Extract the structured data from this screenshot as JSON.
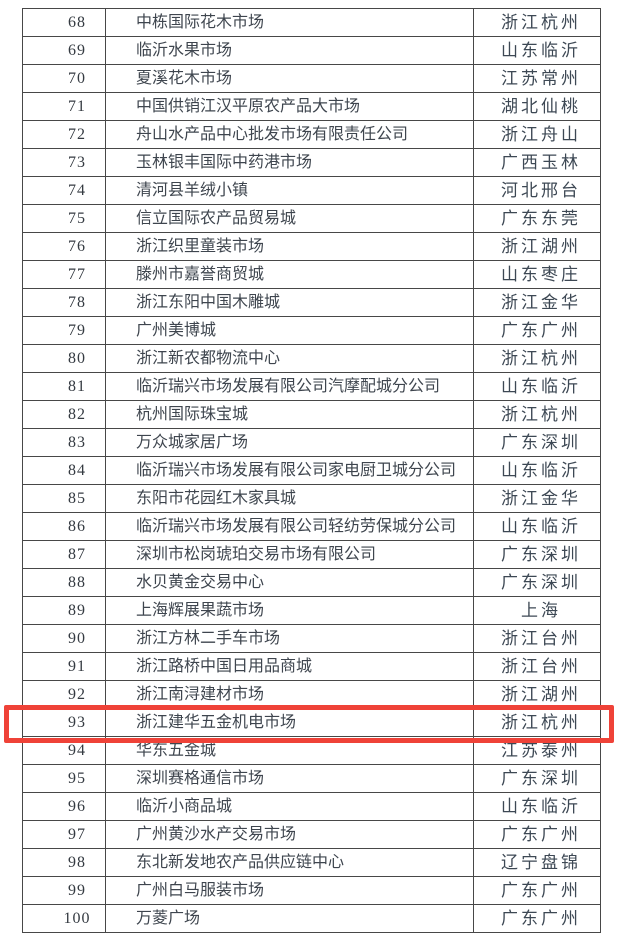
{
  "table": {
    "highlighted_rank": "93",
    "colors": {
      "background": "#ffffff",
      "border": "#474747",
      "text": "#3e454e",
      "highlight": "#ef4238"
    },
    "rows": [
      {
        "rank": "68",
        "name": "中栋国际花木市场",
        "location": "浙江杭州",
        "highlighted": false
      },
      {
        "rank": "69",
        "name": "临沂水果市场",
        "location": "山东临沂",
        "highlighted": false
      },
      {
        "rank": "70",
        "name": "夏溪花木市场",
        "location": "江苏常州",
        "highlighted": false
      },
      {
        "rank": "71",
        "name": "中国供销江汉平原农产品大市场",
        "location": "湖北仙桃",
        "highlighted": false
      },
      {
        "rank": "72",
        "name": "舟山水产品中心批发市场有限责任公司",
        "location": "浙江舟山",
        "highlighted": false
      },
      {
        "rank": "73",
        "name": "玉林银丰国际中药港市场",
        "location": "广西玉林",
        "highlighted": false
      },
      {
        "rank": "74",
        "name": "清河县羊绒小镇",
        "location": "河北邢台",
        "highlighted": false
      },
      {
        "rank": "75",
        "name": "信立国际农产品贸易城",
        "location": "广东东莞",
        "highlighted": false
      },
      {
        "rank": "76",
        "name": "浙江织里童装市场",
        "location": "浙江湖州",
        "highlighted": false
      },
      {
        "rank": "77",
        "name": "滕州市嘉誉商贸城",
        "location": "山东枣庄",
        "highlighted": false
      },
      {
        "rank": "78",
        "name": "浙江东阳中国木雕城",
        "location": "浙江金华",
        "highlighted": false
      },
      {
        "rank": "79",
        "name": "广州美博城",
        "location": "广东广州",
        "highlighted": false
      },
      {
        "rank": "80",
        "name": "浙江新农都物流中心",
        "location": "浙江杭州",
        "highlighted": false
      },
      {
        "rank": "81",
        "name": "临沂瑞兴市场发展有限公司汽摩配城分公司",
        "location": "山东临沂",
        "highlighted": false
      },
      {
        "rank": "82",
        "name": "杭州国际珠宝城",
        "location": "浙江杭州",
        "highlighted": false
      },
      {
        "rank": "83",
        "name": "万众城家居广场",
        "location": "广东深圳",
        "highlighted": false
      },
      {
        "rank": "84",
        "name": "临沂瑞兴市场发展有限公司家电厨卫城分公司",
        "location": "山东临沂",
        "highlighted": false
      },
      {
        "rank": "85",
        "name": "东阳市花园红木家具城",
        "location": "浙江金华",
        "highlighted": false
      },
      {
        "rank": "86",
        "name": "临沂瑞兴市场发展有限公司轻纺劳保城分公司",
        "location": "山东临沂",
        "highlighted": false
      },
      {
        "rank": "87",
        "name": "深圳市松岗琥珀交易市场有限公司",
        "location": "广东深圳",
        "highlighted": false
      },
      {
        "rank": "88",
        "name": "水贝黄金交易中心",
        "location": "广东深圳",
        "highlighted": false
      },
      {
        "rank": "89",
        "name": "上海辉展果蔬市场",
        "location": "上海",
        "highlighted": false
      },
      {
        "rank": "90",
        "name": "浙江方林二手车市场",
        "location": "浙江台州",
        "highlighted": false
      },
      {
        "rank": "91",
        "name": "浙江路桥中国日用品商城",
        "location": "浙江台州",
        "highlighted": false
      },
      {
        "rank": "92",
        "name": "浙江南浔建材市场",
        "location": "浙江湖州",
        "highlighted": false
      },
      {
        "rank": "93",
        "name": "浙江建华五金机电市场",
        "location": "浙江杭州",
        "highlighted": true
      },
      {
        "rank": "94",
        "name": "华东五金城",
        "location": "江苏泰州",
        "highlighted": false
      },
      {
        "rank": "95",
        "name": "深圳赛格通信市场",
        "location": "广东深圳",
        "highlighted": false
      },
      {
        "rank": "96",
        "name": "临沂小商品城",
        "location": "山东临沂",
        "highlighted": false
      },
      {
        "rank": "97",
        "name": "广州黄沙水产交易市场",
        "location": "广东广州",
        "highlighted": false
      },
      {
        "rank": "98",
        "name": "东北新发地农产品供应链中心",
        "location": "辽宁盘锦",
        "highlighted": false
      },
      {
        "rank": "99",
        "name": "广州白马服装市场",
        "location": "广东广州",
        "highlighted": false
      },
      {
        "rank": "100",
        "name": "万菱广场",
        "location": "广东广州",
        "highlighted": false
      }
    ]
  }
}
